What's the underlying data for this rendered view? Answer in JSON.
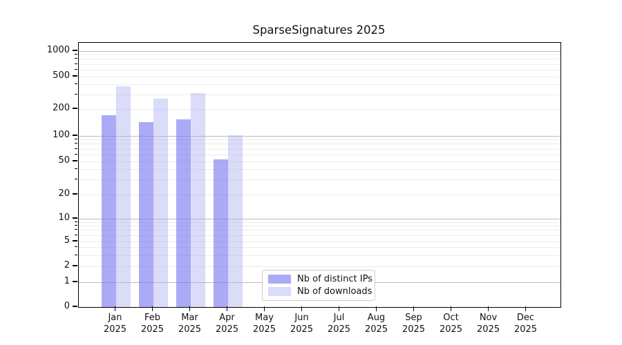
{
  "chart_data": {
    "type": "bar",
    "title": "SparseSignatures 2025",
    "x_year": "2025",
    "categories": [
      "Jan",
      "Feb",
      "Mar",
      "Apr",
      "May",
      "Jun",
      "Jul",
      "Aug",
      "Sep",
      "Oct",
      "Nov",
      "Dec"
    ],
    "series": [
      {
        "name": "Nb of distinct IPs",
        "color": "rgba(113,113,242,0.60)",
        "values": [
          170,
          143,
          153,
          53,
          null,
          null,
          null,
          null,
          null,
          null,
          null,
          null
        ]
      },
      {
        "name": "Nb of downloads",
        "color": "rgba(164,164,243,0.40)",
        "values": [
          380,
          270,
          313,
          102,
          null,
          null,
          null,
          null,
          null,
          null,
          null,
          null
        ]
      }
    ],
    "yscale": "symlog",
    "yticks": [
      0,
      1,
      2,
      5,
      10,
      20,
      50,
      100,
      200,
      500,
      1000
    ],
    "ylim": [
      0,
      1000
    ],
    "grid": true,
    "legend_position": "lower center"
  }
}
